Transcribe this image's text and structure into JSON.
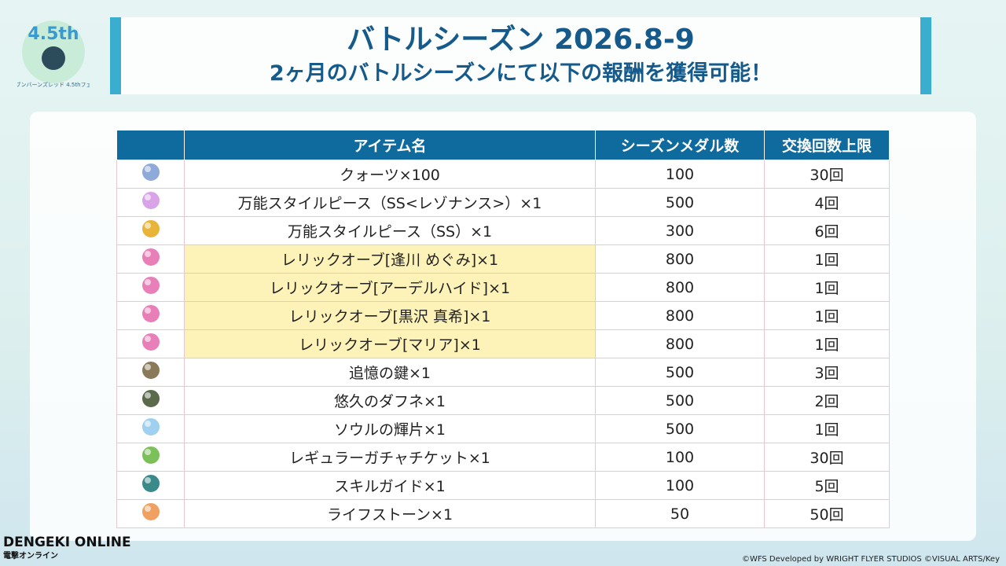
{
  "logo": {
    "title": "4.5th",
    "subtitle": "ヘブンバーンズレッド 4.5thフェス"
  },
  "header": {
    "title": "バトルシーズン 2026.8-9",
    "subtitle": "2ヶ月のバトルシーズンにて以下の報酬を獲得可能！"
  },
  "table": {
    "columns": [
      "アイテム名",
      "シーズンメダル数",
      "交換回数上限"
    ],
    "rows": [
      {
        "name": "クォーツ×100",
        "medals": "100",
        "limit": "30回",
        "highlight": false,
        "icon_color": "#8fa9d8"
      },
      {
        "name": "万能スタイルピース（SS<レゾナンス>）×1",
        "medals": "500",
        "limit": "4回",
        "highlight": false,
        "icon_color": "#d9a3e8"
      },
      {
        "name": "万能スタイルピース（SS）×1",
        "medals": "300",
        "limit": "6回",
        "highlight": false,
        "icon_color": "#e8b43a"
      },
      {
        "name": "レリックオーブ[逢川 めぐみ]×1",
        "medals": "800",
        "limit": "1回",
        "highlight": true,
        "icon_color": "#e87fb8"
      },
      {
        "name": "レリックオーブ[アーデルハイド]×1",
        "medals": "800",
        "limit": "1回",
        "highlight": true,
        "icon_color": "#e87fb8"
      },
      {
        "name": "レリックオーブ[黒沢 真希]×1",
        "medals": "800",
        "limit": "1回",
        "highlight": true,
        "icon_color": "#e87fb8"
      },
      {
        "name": "レリックオーブ[マリア]×1",
        "medals": "800",
        "limit": "1回",
        "highlight": true,
        "icon_color": "#e87fb8"
      },
      {
        "name": "追憶の鍵×1",
        "medals": "500",
        "limit": "3回",
        "highlight": false,
        "icon_color": "#8a7a5a"
      },
      {
        "name": "悠久のダフネ×1",
        "medals": "500",
        "limit": "2回",
        "highlight": false,
        "icon_color": "#5a6a4a"
      },
      {
        "name": "ソウルの輝片×1",
        "medals": "500",
        "limit": "1回",
        "highlight": false,
        "icon_color": "#9fd0f0"
      },
      {
        "name": "レギュラーガチャチケット×1",
        "medals": "100",
        "limit": "30回",
        "highlight": false,
        "icon_color": "#7cc05a"
      },
      {
        "name": "スキルガイド×1",
        "medals": "100",
        "limit": "5回",
        "highlight": false,
        "icon_color": "#3a8a8a"
      },
      {
        "name": "ライフストーン×1",
        "medals": "50",
        "limit": "50回",
        "highlight": false,
        "icon_color": "#f0a060"
      }
    ]
  },
  "footer": {
    "copyright": "©WFS Developed by WRIGHT FLYER STUDIOS ©VISUAL ARTS/Key",
    "brand": "DENGEKI ONLINE",
    "brand_sub": "電撃オンライン"
  }
}
